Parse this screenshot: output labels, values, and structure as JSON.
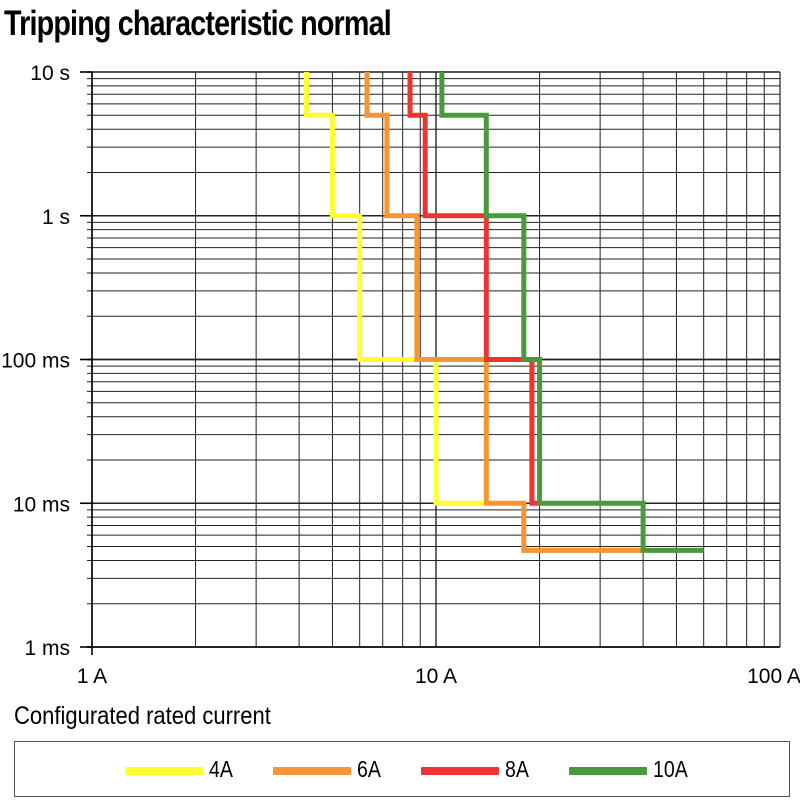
{
  "title": "Tripping characteristic normal",
  "legend_title": "Configurated rated current",
  "chart_data": {
    "type": "line",
    "title": "Tripping characteristic normal",
    "xscale": "log",
    "yscale": "log",
    "xlim": [
      1,
      100
    ],
    "ylim": [
      0.001,
      10
    ],
    "grid": true,
    "legend": "bottom",
    "x_ticks": [
      {
        "value": 1,
        "label": "1 A"
      },
      {
        "value": 10,
        "label": "10 A"
      },
      {
        "value": 100,
        "label": "100 A"
      }
    ],
    "y_ticks": [
      {
        "value": 10,
        "label": "10 s"
      },
      {
        "value": 1,
        "label": "1 s"
      },
      {
        "value": 0.1,
        "label": "100 ms"
      },
      {
        "value": 0.01,
        "label": "10 ms"
      },
      {
        "value": 0.001,
        "label": "1 ms"
      }
    ],
    "series": [
      {
        "name": "4A",
        "color": "#ffff33",
        "x": [
          4.2,
          4.2,
          5.0,
          5.0,
          6.0,
          6.0,
          10.0,
          10.0,
          14.0
        ],
        "y": [
          10,
          5,
          5,
          1,
          1,
          0.1,
          0.1,
          0.01,
          0.01
        ]
      },
      {
        "name": "6A",
        "color": "#f79433",
        "x": [
          6.3,
          6.3,
          7.2,
          7.2,
          8.8,
          8.8,
          14.0,
          14.0,
          18.0,
          18.0,
          40.0
        ],
        "y": [
          10,
          5,
          5,
          1,
          1,
          0.1,
          0.1,
          0.01,
          0.01,
          0.0047,
          0.0047
        ]
      },
      {
        "name": "8A",
        "color": "#ee3333",
        "x": [
          8.4,
          8.4,
          9.3,
          9.3,
          14.0,
          14.0,
          19.0,
          19.0,
          20.0
        ],
        "y": [
          10,
          5,
          5,
          1,
          1,
          0.1,
          0.1,
          0.01,
          0.01
        ]
      },
      {
        "name": "10A",
        "color": "#4a9a3d",
        "x": [
          10.4,
          10.4,
          14.0,
          14.0,
          18.0,
          18.0,
          20.0,
          20.0,
          40.0,
          40.0,
          60.0
        ],
        "y": [
          10,
          5,
          5,
          1,
          1,
          0.1,
          0.1,
          0.01,
          0.01,
          0.0047,
          0.0047
        ]
      }
    ]
  }
}
